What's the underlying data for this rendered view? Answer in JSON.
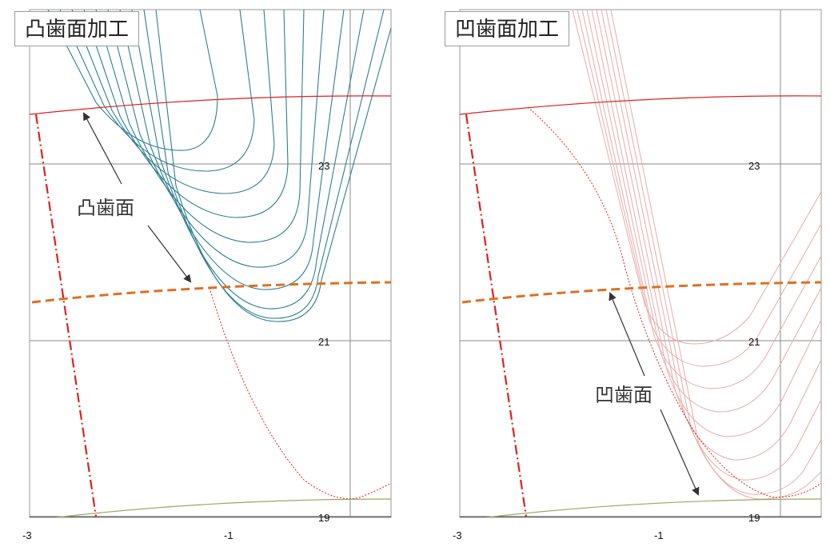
{
  "panels": [
    {
      "id": "convex",
      "title": "凸歯面加工",
      "callout": "凸歯面",
      "x_ticks": [
        "-3",
        "-1"
      ],
      "y_ticks": [
        "23",
        "21",
        "19"
      ]
    },
    {
      "id": "concave",
      "title": "凹歯面加工",
      "callout": "凹歯面",
      "x_ticks": [
        "-3",
        "-1"
      ],
      "y_ticks": [
        "23",
        "21",
        "19"
      ]
    }
  ],
  "colors": {
    "tool_convex": "#2e7f90",
    "tool_concave": "#e8aaaa",
    "tip_circle": "#e02020",
    "pitch_line": "#e07020",
    "root_line": "#9aa860",
    "center_line": "#e02020",
    "grid": "#8a8a8a"
  }
}
